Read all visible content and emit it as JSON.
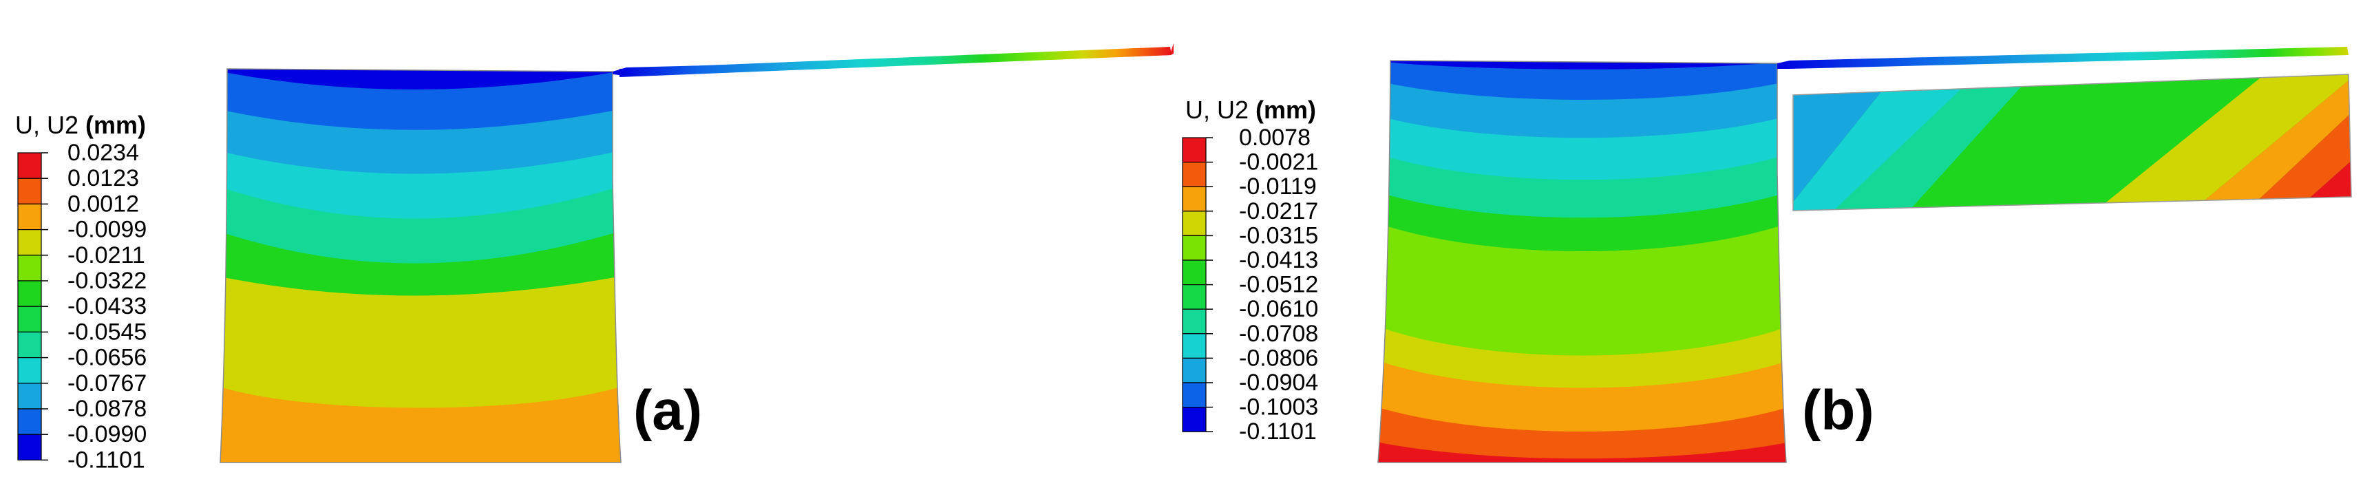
{
  "figure": {
    "panels": [
      {
        "id": "a",
        "label": "(a)",
        "legend": {
          "title": "U, U2",
          "unit": "(mm)",
          "values": [
            "0.0234",
            "0.0123",
            "0.0012",
            "-0.0099",
            "-0.0211",
            "-0.0322",
            "-0.0433",
            "-0.0545",
            "-0.0656",
            "-0.0767",
            "-0.0878",
            "-0.0990",
            "-0.1101"
          ],
          "colors": [
            "#e8131b",
            "#f25a0c",
            "#f7a20a",
            "#cfd603",
            "#7be303",
            "#1fd61f",
            "#15d846",
            "#14d896",
            "#16d2d0",
            "#18a6df",
            "#0d63e8",
            "#0000e0"
          ]
        }
      },
      {
        "id": "b",
        "label": "(b)",
        "legend": {
          "title": "U, U2",
          "unit": "(mm)",
          "values": [
            "0.0078",
            "-0.0021",
            "-0.0119",
            "-0.0217",
            "-0.0315",
            "-0.0413",
            "-0.0512",
            "-0.0610",
            "-0.0708",
            "-0.0806",
            "-0.0904",
            "-0.1003",
            "-0.1101"
          ],
          "colors": [
            "#e8131b",
            "#f25a0c",
            "#f7a20a",
            "#cfd603",
            "#7be303",
            "#1fd61f",
            "#15d846",
            "#14d896",
            "#16d2d0",
            "#18a6df",
            "#0d63e8",
            "#0000e0"
          ]
        }
      }
    ]
  }
}
